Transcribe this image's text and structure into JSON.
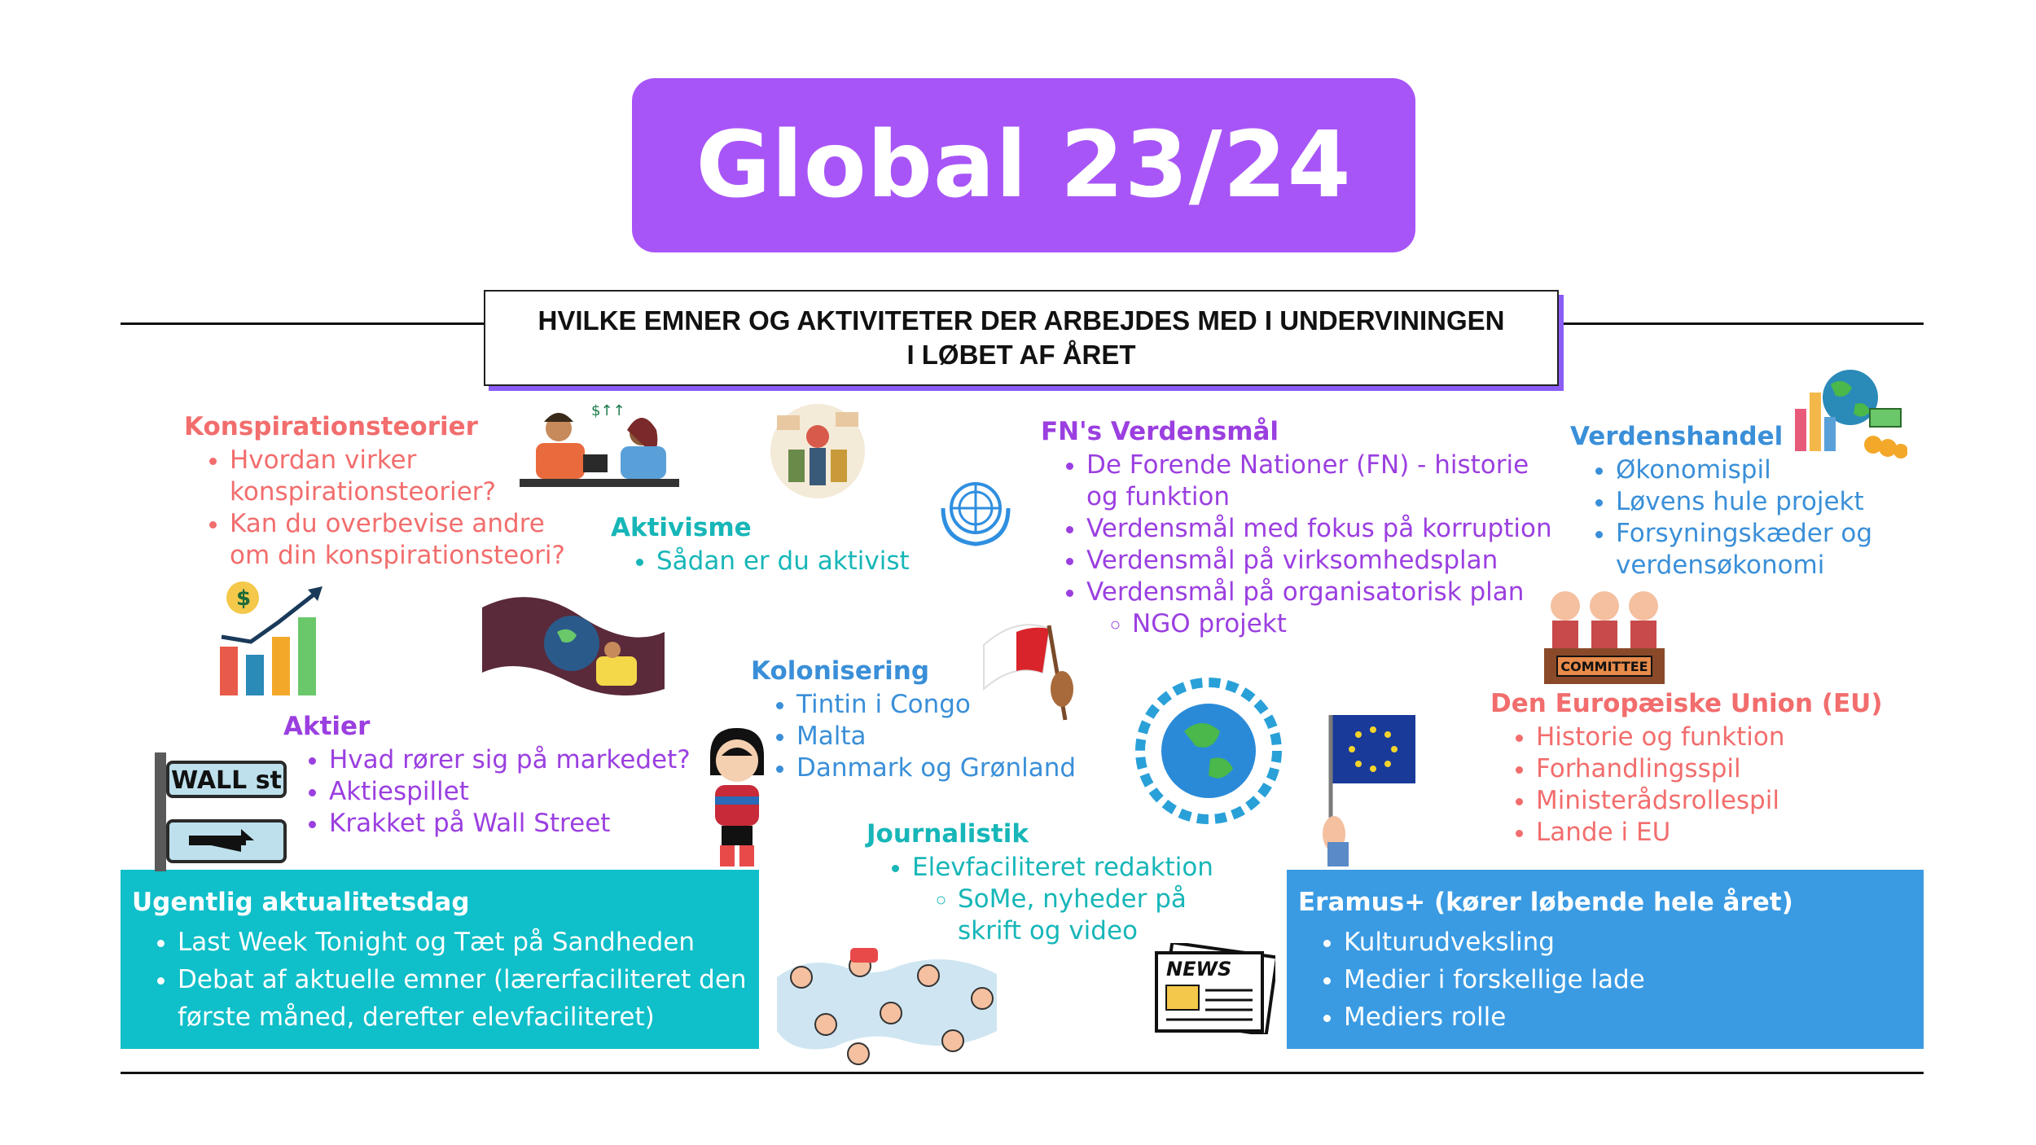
{
  "title": "Global 23/24",
  "subtitle": {
    "line1": "HVILKE EMNER OG AKTIVITETER  DER ARBEJDES MED I UNDERVININGEN",
    "line2": "I LØBET AF ÅRET"
  },
  "sections": {
    "konspiration": {
      "heading": "Konspirationsteorier",
      "items": [
        "Hvordan virker konspirationsteorier?",
        "Kan du overbevise andre om din konspirationsteori?"
      ]
    },
    "aktivisme": {
      "heading": "Aktivisme",
      "items": [
        "Sådan er du aktivist"
      ]
    },
    "fn": {
      "heading": "FN's Verdensmål",
      "items": [
        "De Forende Nationer (FN) - historie og funktion",
        "Verdensmål med fokus på korruption",
        "Verdensmål på virksomhedsplan",
        "Verdensmål på organisatorisk plan"
      ],
      "subitems": [
        "NGO projekt"
      ]
    },
    "verdenshandel": {
      "heading": "Verdenshandel",
      "items": [
        "Økonomispil",
        "Løvens hule projekt",
        "Forsyningskæder og verdensøkonomi"
      ]
    },
    "kolonisering": {
      "heading": "Kolonisering",
      "items": [
        "Tintin i Congo",
        "Malta",
        "Danmark og Grønland"
      ]
    },
    "eu": {
      "heading": "Den Europæiske Union (EU)",
      "items": [
        "Historie og funktion",
        "Forhandlingsspil",
        "Ministerådsrollespil",
        "Lande i EU"
      ]
    },
    "aktier": {
      "heading": "Aktier",
      "items": [
        "Hvad rører sig på markedet?",
        "Aktiespillet",
        "Krakket på Wall Street"
      ]
    },
    "journalistik": {
      "heading": "Journalistik",
      "items": [
        "Elevfaciliteret redaktion"
      ],
      "subitems": [
        "SoMe, nyheder på skrift og video"
      ]
    }
  },
  "boxes": {
    "ugentlig": {
      "heading": "Ugentlig aktualitetsdag",
      "items": [
        "Last Week Tonight og Tæt på Sandheden",
        "Debat af aktuelle emner (lærerfaciliteret den første måned, derefter elevfaciliteret)"
      ]
    },
    "erasmus": {
      "heading": "Eramus+ (kører løbende hele året)",
      "items": [
        "Kulturudveksling",
        "Medier i forskellige lade",
        "Mediers rolle"
      ]
    }
  },
  "icon_text": {
    "wall_st": "WALL st",
    "committee": "COMMITTEE",
    "news": "NEWS",
    "dollar": "$"
  },
  "colors": {
    "title_bg": "#a855f7",
    "coral": "#f26d6d",
    "teal": "#17b6b8",
    "purple": "#9b3fe0",
    "blue": "#3a8fd8",
    "box_teal": "#0fbfc9",
    "box_blue": "#3a9be3"
  }
}
